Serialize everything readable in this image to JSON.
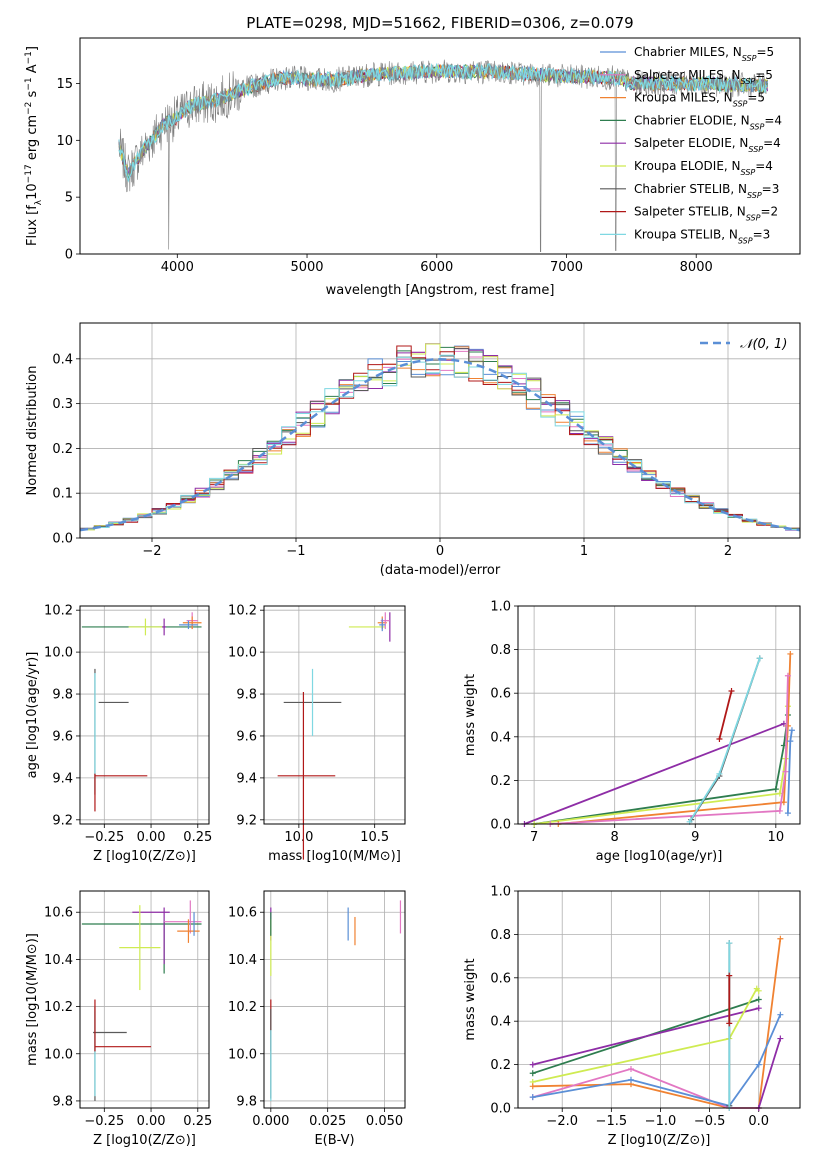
{
  "figure": {
    "title": "PLATE=0298, MJD=51662, FIBERID=0306, z=0.079"
  },
  "colors": {
    "Chabrier MILES": "#5B8FD6",
    "Salpeter MILES": "#E277C3",
    "Kroupa MILES": "#F08232",
    "Chabrier ELODIE": "#2E7D4F",
    "Salpeter ELODIE": "#8E2DA6",
    "Kroupa ELODIE": "#CFEB52",
    "Chabrier STELIB": "#5A5A5A",
    "Salpeter STELIB": "#B01818",
    "Kroupa STELIB": "#7FD8E2",
    "normal": "#5B8FD6"
  },
  "chart_data": [
    {
      "id": "spectrum",
      "type": "line",
      "xlabel": "wavelength [Angstrom, rest frame]",
      "ylabel": "Flux [f_λ 10^-17 erg cm^-2 s^-1 A^-1]",
      "xlim": [
        3250,
        8800
      ],
      "ylim": [
        0,
        19
      ],
      "xticks": [
        4000,
        5000,
        6000,
        7000,
        8000
      ],
      "yticks": [
        0,
        5,
        10,
        15
      ],
      "legend_position": "right",
      "legend": [
        {
          "name": "Chabrier MILES",
          "nssp": "5"
        },
        {
          "name": "Salpeter MILES",
          "nssp": "5"
        },
        {
          "name": "Kroupa MILES",
          "nssp": "5"
        },
        {
          "name": "Chabrier ELODIE",
          "nssp": "4"
        },
        {
          "name": "Salpeter ELODIE",
          "nssp": "4"
        },
        {
          "name": "Kroupa ELODIE",
          "nssp": "4"
        },
        {
          "name": "Chabrier STELIB",
          "nssp": "3"
        },
        {
          "name": "Salpeter STELIB",
          "nssp": "2"
        },
        {
          "name": "Kroupa STELIB",
          "nssp": "3"
        }
      ],
      "continuum_points": [
        [
          3550,
          9.5
        ],
        [
          3620,
          7.0
        ],
        [
          3700,
          8.5
        ],
        [
          3800,
          10.0
        ],
        [
          3900,
          11.5
        ],
        [
          4000,
          12.0
        ],
        [
          4100,
          13.0
        ],
        [
          4300,
          13.5
        ],
        [
          4500,
          14.5
        ],
        [
          4800,
          15.5
        ],
        [
          5200,
          15.3
        ],
        [
          5500,
          15.8
        ],
        [
          6000,
          16.1
        ],
        [
          6500,
          16.0
        ],
        [
          7000,
          15.6
        ],
        [
          7400,
          15.5
        ],
        [
          7500,
          15.0
        ],
        [
          8000,
          15.0
        ],
        [
          8500,
          14.8
        ]
      ],
      "absorption_lines": [
        [
          3934,
          0.4
        ],
        [
          6800,
          0.2
        ],
        [
          7380,
          0.3
        ]
      ]
    },
    {
      "id": "residuals",
      "type": "line",
      "xlabel": "(data-model)/error",
      "ylabel": "Normed distribution",
      "xlim": [
        -2.5,
        2.5
      ],
      "ylim": [
        0,
        0.48
      ],
      "xticks": [
        -2,
        -1,
        0,
        1,
        2
      ],
      "xtick_labels": [
        "−2",
        "−1",
        "0",
        "1",
        "2"
      ],
      "yticks": [
        0.0,
        0.1,
        0.2,
        0.3,
        0.4
      ],
      "ytick_labels": [
        "0.0",
        "0.1",
        "0.2",
        "0.3",
        "0.4"
      ],
      "bin_width": 0.1,
      "legend_label": "N(0,1)",
      "legend_position": "top-right",
      "grid": true
    },
    {
      "id": "age-vs-Z",
      "type": "scatter",
      "xlabel": "Z [log10(Z/Z⊙)]",
      "ylabel": "age [log10(age/yr)]",
      "xlim": [
        -0.38,
        0.31
      ],
      "ylim": [
        9.18,
        10.22
      ],
      "xticks": [
        -0.25,
        0.0,
        0.25
      ],
      "xtick_labels": [
        "−0.25",
        "0.00",
        "0.25"
      ],
      "yticks": [
        9.2,
        9.4,
        9.6,
        9.8,
        10.0,
        10.2
      ],
      "ytick_labels": [
        "9.2",
        "9.4",
        "9.6",
        "9.8",
        "10.0",
        "10.2"
      ],
      "grid": true,
      "points": [
        {
          "model": "Chabrier ELODIE",
          "x": -0.05,
          "xerr": 0.32,
          "y": 10.12,
          "yerr": 0.0
        },
        {
          "model": "Kroupa ELODIE",
          "x": -0.03,
          "xerr": 0.09,
          "y": 10.12,
          "yerr": 0.04
        },
        {
          "model": "Salpeter ELODIE",
          "x": 0.07,
          "xerr": 0.01,
          "y": 10.12,
          "yerr": 0.04
        },
        {
          "model": "Salpeter MILES",
          "x": 0.22,
          "xerr": 0.03,
          "y": 10.15,
          "yerr": 0.04
        },
        {
          "model": "Kroupa MILES",
          "x": 0.22,
          "xerr": 0.05,
          "y": 10.14,
          "yerr": 0.03
        },
        {
          "model": "Chabrier MILES",
          "x": 0.2,
          "xerr": 0.05,
          "y": 10.13,
          "yerr": 0.02
        },
        {
          "model": "Chabrier STELIB",
          "x": -0.3,
          "xerr": 0.0,
          "y": 9.62,
          "yerr": 0.3
        },
        {
          "model": "Kroupa STELIB",
          "x": -0.3,
          "xerr": 0.0,
          "y": 9.62,
          "yerr": 0.28
        },
        {
          "model": "Chabrier STELIB",
          "x": -0.2,
          "xerr": 0.08,
          "y": 9.76,
          "yerr": 0.0
        },
        {
          "model": "Salpeter STELIB",
          "x": -0.16,
          "xerr": 0.14,
          "y": 9.41,
          "yerr": 0.0
        },
        {
          "model": "Salpeter STELIB",
          "x": -0.3,
          "xerr": 0.0,
          "y": 9.33,
          "yerr": 0.09
        }
      ]
    },
    {
      "id": "age-vs-mass",
      "type": "scatter",
      "xlabel": "mass [log10(M/M⊙)]",
      "xlim": [
        9.77,
        10.7
      ],
      "ylim": [
        9.18,
        10.22
      ],
      "xticks": [
        10.0,
        10.5
      ],
      "xtick_labels": [
        "10.0",
        "10.5"
      ],
      "yticks": [
        9.2,
        9.4,
        9.6,
        9.8,
        10.0,
        10.2
      ],
      "ytick_labels": [
        "9.2",
        "9.4",
        "9.6",
        "9.8",
        "10.0",
        "10.2"
      ],
      "grid": true,
      "points": [
        {
          "model": "Kroupa ELODIE",
          "x": 10.45,
          "xerr": 0.12,
          "y": 10.12,
          "yerr": 0.0
        },
        {
          "model": "Salpeter ELODIE",
          "x": 10.6,
          "xerr": 0.0,
          "y": 10.12,
          "yerr": 0.07
        },
        {
          "model": "Kroupa MILES",
          "x": 10.55,
          "xerr": 0.03,
          "y": 10.14,
          "yerr": 0.03
        },
        {
          "model": "Salpeter MILES",
          "x": 10.57,
          "xerr": 0.03,
          "y": 10.15,
          "yerr": 0.04
        },
        {
          "model": "Chabrier MILES",
          "x": 10.55,
          "xerr": 0.02,
          "y": 10.13,
          "yerr": 0.03
        },
        {
          "model": "Chabrier STELIB",
          "x": 10.09,
          "xerr": 0.19,
          "y": 9.76,
          "yerr": 0.0
        },
        {
          "model": "Kroupa STELIB",
          "x": 10.09,
          "xerr": 0.0,
          "y": 9.76,
          "yerr": 0.16
        },
        {
          "model": "Salpeter STELIB",
          "x": 10.03,
          "xerr": 0.0,
          "y": 9.41,
          "yerr": 0.4
        },
        {
          "model": "Salpeter STELIB",
          "x": 10.05,
          "xerr": 0.19,
          "y": 9.41,
          "yerr": 0.0
        }
      ]
    },
    {
      "id": "mass-weight-vs-age",
      "type": "line",
      "xlabel": "age [log10(age/yr)]",
      "ylabel": "mass weight",
      "xlim": [
        6.8,
        10.3
      ],
      "ylim": [
        0,
        1.0
      ],
      "xticks": [
        7,
        8,
        9,
        10
      ],
      "yticks": [
        0.0,
        0.2,
        0.4,
        0.6,
        0.8,
        1.0
      ],
      "ytick_labels": [
        "0.0",
        "0.2",
        "0.4",
        "0.6",
        "0.8",
        "1.0"
      ],
      "grid": true,
      "series": [
        {
          "model": "Salpeter ELODIE",
          "x": [
            6.88,
            10.1
          ],
          "y": [
            0.0,
            0.46
          ]
        },
        {
          "model": "Chabrier ELODIE",
          "x": [
            7.0,
            10.0,
            10.1,
            10.15
          ],
          "y": [
            0.0,
            0.16,
            0.36,
            0.5
          ]
        },
        {
          "model": "Kroupa ELODIE",
          "x": [
            7.0,
            10.05,
            10.12,
            10.15
          ],
          "y": [
            0.0,
            0.14,
            0.3,
            0.54
          ]
        },
        {
          "model": "Kroupa MILES",
          "x": [
            7.3,
            10.1,
            10.15,
            10.18
          ],
          "y": [
            0.0,
            0.1,
            0.45,
            0.78
          ]
        },
        {
          "model": "Salpeter MILES",
          "x": [
            7.2,
            10.05,
            10.12,
            10.15
          ],
          "y": [
            0.0,
            0.06,
            0.24,
            0.68
          ]
        },
        {
          "model": "Chabrier MILES",
          "x": [
            10.15,
            10.18,
            10.2
          ],
          "y": [
            0.05,
            0.38,
            0.43
          ]
        },
        {
          "model": "Chabrier STELIB",
          "x": [
            8.95,
            9.3,
            9.8
          ],
          "y": [
            0.02,
            0.22,
            0.76
          ]
        },
        {
          "model": "Kroupa STELIB",
          "x": [
            8.93,
            9.3,
            9.8
          ],
          "y": [
            0.01,
            0.23,
            0.76
          ]
        },
        {
          "model": "Salpeter STELIB",
          "x": [
            9.3,
            9.45
          ],
          "y": [
            0.39,
            0.61
          ]
        }
      ]
    },
    {
      "id": "mass-vs-Z",
      "type": "scatter",
      "xlabel": "Z [log10(Z/Z⊙)]",
      "ylabel": "mass [log10(M/M⊙)]",
      "xlim": [
        -0.38,
        0.31
      ],
      "ylim": [
        9.77,
        10.69
      ],
      "xticks": [
        -0.25,
        0.0,
        0.25
      ],
      "xtick_labels": [
        "−0.25",
        "0.00",
        "0.25"
      ],
      "yticks": [
        9.8,
        10.0,
        10.2,
        10.4,
        10.6
      ],
      "ytick_labels": [
        "9.8",
        "10.0",
        "10.2",
        "10.4",
        "10.6"
      ],
      "grid": true,
      "points": [
        {
          "model": "Chabrier ELODIE",
          "x": -0.05,
          "xerr": 0.32,
          "y": 10.55,
          "yerr": 0.0
        },
        {
          "model": "Chabrier ELODIE",
          "x": 0.07,
          "xerr": 0.0,
          "y": 10.45,
          "yerr": 0.11
        },
        {
          "model": "Salpeter ELODIE",
          "x": 0.0,
          "xerr": 0.1,
          "y": 10.6,
          "yerr": 0.0
        },
        {
          "model": "Salpeter ELODIE",
          "x": 0.07,
          "xerr": 0.0,
          "y": 10.5,
          "yerr": 0.12
        },
        {
          "model": "Kroupa ELODIE",
          "x": -0.06,
          "xerr": 0.11,
          "y": 10.45,
          "yerr": 0.18
        },
        {
          "model": "Salpeter MILES",
          "x": 0.17,
          "xerr": 0.1,
          "y": 10.56,
          "yerr": 0.0
        },
        {
          "model": "Salpeter MILES",
          "x": 0.21,
          "xerr": 0.0,
          "y": 10.58,
          "yerr": 0.07
        },
        {
          "model": "Kroupa MILES",
          "x": 0.2,
          "xerr": 0.06,
          "y": 10.52,
          "yerr": 0.05
        },
        {
          "model": "Chabrier MILES",
          "x": 0.23,
          "xerr": 0.0,
          "y": 10.55,
          "yerr": 0.05
        },
        {
          "model": "Chabrier STELIB",
          "x": -0.3,
          "xerr": 0.0,
          "y": 10.0,
          "yerr": 0.2
        },
        {
          "model": "Kroupa STELIB",
          "x": -0.3,
          "xerr": 0.0,
          "y": 10.0,
          "yerr": 0.18
        },
        {
          "model": "Chabrier STELIB",
          "x": -0.22,
          "xerr": 0.09,
          "y": 10.09,
          "yerr": 0.0
        },
        {
          "model": "Salpeter STELIB",
          "x": -0.15,
          "xerr": 0.15,
          "y": 10.03,
          "yerr": 0.0
        },
        {
          "model": "Salpeter STELIB",
          "x": -0.3,
          "xerr": 0.0,
          "y": 10.12,
          "yerr": 0.11
        }
      ]
    },
    {
      "id": "mass-vs-ebv",
      "type": "scatter",
      "xlabel": "E(B-V)",
      "xlim": [
        -0.003,
        0.059
      ],
      "ylim": [
        9.77,
        10.69
      ],
      "xticks": [
        0.0,
        0.025,
        0.05
      ],
      "xtick_labels": [
        "0.000",
        "0.025",
        "0.050"
      ],
      "yticks": [
        9.8,
        10.0,
        10.2,
        10.4,
        10.6
      ],
      "ytick_labels": [
        "9.8",
        "10.0",
        "10.2",
        "10.4",
        "10.6"
      ],
      "grid": true,
      "points": [
        {
          "model": "Salpeter ELODIE",
          "x": 0.0,
          "xerr": 0.0,
          "y": 10.55,
          "yerr": 0.07
        },
        {
          "model": "Kroupa ELODIE",
          "x": 0.0,
          "xerr": 0.0,
          "y": 10.45,
          "yerr": 0.12
        },
        {
          "model": "Chabrier ELODIE",
          "x": 0.0,
          "xerr": 0.0,
          "y": 10.55,
          "yerr": 0.05
        },
        {
          "model": "Salpeter STELIB",
          "x": 0.0,
          "xerr": 0.0,
          "y": 10.12,
          "yerr": 0.11
        },
        {
          "model": "Chabrier STELIB",
          "x": 0.0,
          "xerr": 0.0,
          "y": 10.0,
          "yerr": 0.19
        },
        {
          "model": "Kroupa STELIB",
          "x": 0.0,
          "xerr": 0.0,
          "y": 9.95,
          "yerr": 0.15
        },
        {
          "model": "Chabrier MILES",
          "x": 0.034,
          "xerr": 0.0,
          "y": 10.55,
          "yerr": 0.07
        },
        {
          "model": "Kroupa MILES",
          "x": 0.037,
          "xerr": 0.0,
          "y": 10.52,
          "yerr": 0.06
        },
        {
          "model": "Salpeter MILES",
          "x": 0.057,
          "xerr": 0.0,
          "y": 10.58,
          "yerr": 0.07
        }
      ]
    },
    {
      "id": "mass-weight-vs-Z",
      "type": "line",
      "xlabel": "Z [log10(Z/Z⊙)]",
      "ylabel": "mass weight",
      "xlim": [
        -2.45,
        0.42
      ],
      "ylim": [
        0,
        1.0
      ],
      "xticks": [
        -2.0,
        -1.5,
        -1.0,
        -0.5,
        0.0
      ],
      "xtick_labels": [
        "−2.0",
        "−1.5",
        "−1.0",
        "−0.5",
        "0.0"
      ],
      "yticks": [
        0.0,
        0.2,
        0.4,
        0.6,
        0.8,
        1.0
      ],
      "ytick_labels": [
        "0.0",
        "0.2",
        "0.4",
        "0.6",
        "0.8",
        "1.0"
      ],
      "grid": true,
      "series": [
        {
          "model": "Chabrier ELODIE",
          "x": [
            -2.3,
            0.0
          ],
          "y": [
            0.16,
            0.5
          ]
        },
        {
          "model": "Salpeter ELODIE",
          "x": [
            -2.3,
            0.0
          ],
          "y": [
            0.2,
            0.46
          ]
        },
        {
          "model": "Kroupa ELODIE",
          "x": [
            -2.3,
            -0.3,
            -0.02,
            0.0
          ],
          "y": [
            0.12,
            0.32,
            0.55,
            0.54
          ]
        },
        {
          "model": "Kroupa MILES",
          "x": [
            -2.3,
            -1.3,
            -0.3,
            0.0,
            0.22
          ],
          "y": [
            0.1,
            0.11,
            0.0,
            0.0,
            0.78
          ]
        },
        {
          "model": "Salpeter MILES",
          "x": [
            -2.3,
            -1.3,
            -0.3,
            0.0
          ],
          "y": [
            0.05,
            0.18,
            0.0,
            0.0
          ]
        },
        {
          "model": "Chabrier MILES",
          "x": [
            -2.3,
            -1.3,
            -0.3,
            0.0,
            0.22
          ],
          "y": [
            0.05,
            0.13,
            0.01,
            0.2,
            0.43
          ]
        },
        {
          "model": "Salpeter ELODIE",
          "x": [
            0.0,
            0.22
          ],
          "y": [
            0.0,
            0.32
          ]
        },
        {
          "model": "Chabrier STELIB",
          "x": [
            -0.3,
            -0.3
          ],
          "y": [
            0.01,
            0.76
          ]
        },
        {
          "model": "Kroupa STELIB",
          "x": [
            -0.3,
            -0.3
          ],
          "y": [
            0.0,
            0.76
          ]
        },
        {
          "model": "Salpeter STELIB",
          "x": [
            -0.3,
            -0.3
          ],
          "y": [
            0.39,
            0.61
          ]
        }
      ]
    }
  ]
}
